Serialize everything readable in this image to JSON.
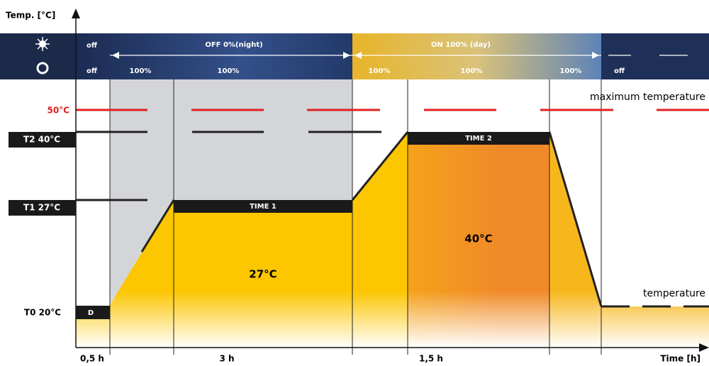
{
  "axis": {
    "y_label": "Temp. [°C]",
    "x_label": "Time [h]"
  },
  "levels": {
    "max": "50°C",
    "t2": "T2 40°C",
    "t1": "T1 27°C",
    "t0": "T0 20°C"
  },
  "light_row": {
    "start": "off",
    "night": "OFF 0%(night)",
    "day": "ON 100% (day)"
  },
  "fan_row": {
    "labels": [
      "off",
      "100%",
      "100%",
      "100%",
      "100%",
      "100%",
      "off"
    ]
  },
  "annotations": {
    "max_temp": "maximum temperature",
    "temperature": "temperature",
    "time1": "TIME 1",
    "time2": "TIME 2",
    "phase1": "27°C",
    "phase2": "40°C",
    "d": "D"
  },
  "durations": [
    "0,5 h",
    "3 h",
    "1,5 h"
  ]
}
